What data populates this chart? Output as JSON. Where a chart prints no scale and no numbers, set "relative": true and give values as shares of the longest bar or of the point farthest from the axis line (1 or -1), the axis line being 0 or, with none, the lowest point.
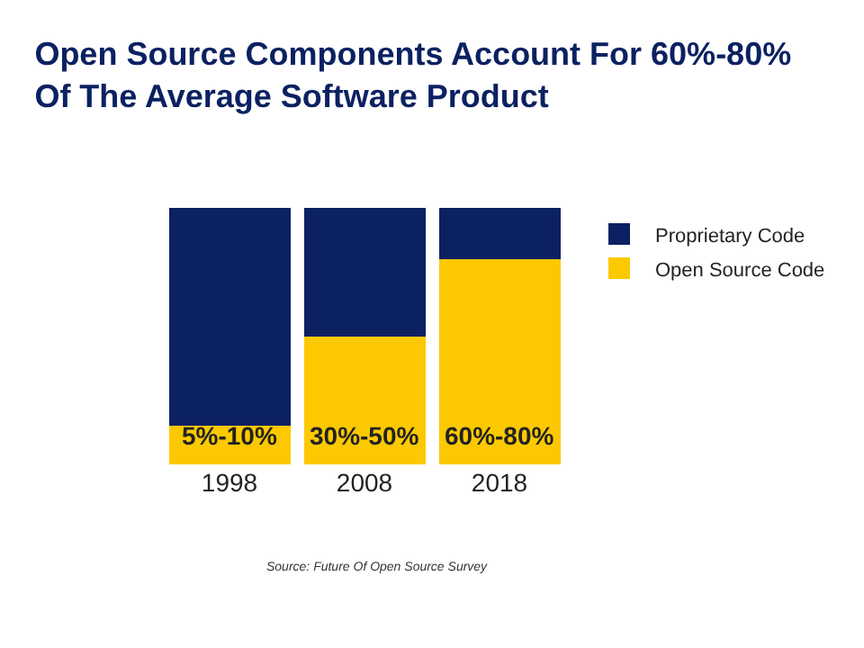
{
  "chart_data": {
    "type": "bar",
    "title": "Open Source Components Account For 60%-80%\nOf The Average Software Product",
    "categories": [
      "1998",
      "2008",
      "2018"
    ],
    "stacked": true,
    "relative": true,
    "legend": "right",
    "series": [
      {
        "name": "Open Source Code",
        "color": "#fcc900",
        "values": [
          0.15,
          0.5,
          0.8
        ]
      },
      {
        "name": "Proprietary Code",
        "color": "#0b2161",
        "values": [
          0.85,
          0.5,
          0.2
        ]
      }
    ],
    "annotations": [
      "5%-10%",
      "30%-50%",
      "60%-80%",
      "Source: Future Of Open Source Survey"
    ]
  }
}
